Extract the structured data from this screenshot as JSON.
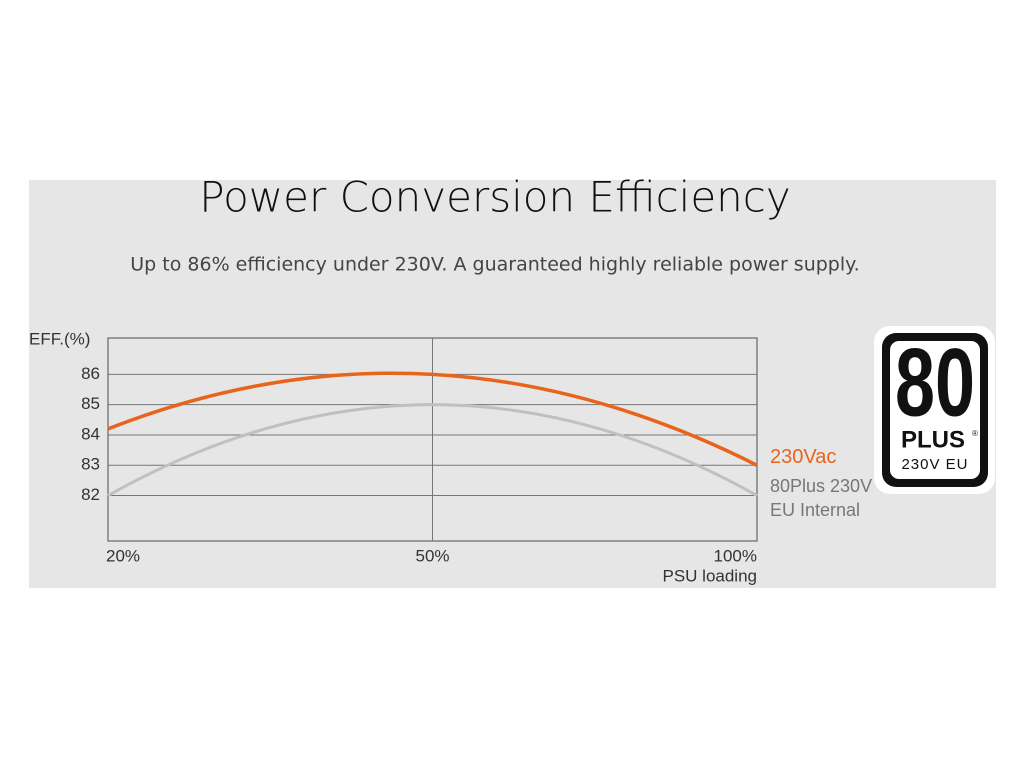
{
  "chart_data": {
    "type": "line",
    "title": "Power Conversion Efficiency",
    "subtitle": "Up to 86% efficiency under 230V. A guaranteed highly reliable power supply.",
    "y_label": "EFF.(%)",
    "x_label": "PSU loading",
    "categories": [
      "20%",
      "50%",
      "100%"
    ],
    "series": [
      {
        "name": "230Vac",
        "color": "#e8641c",
        "values": [
          84.2,
          86,
          83
        ]
      },
      {
        "name": "80Plus 230V EU Internal",
        "color": "#c0c0c0",
        "values": [
          82,
          85,
          82
        ]
      }
    ],
    "ylim": [
      80.5,
      87.2
    ],
    "yticks": [
      82,
      83,
      84,
      85,
      86
    ],
    "grid": true
  },
  "badge": {
    "number": "80",
    "brand": "PLUS",
    "mark": "®",
    "region": "230V EU"
  }
}
